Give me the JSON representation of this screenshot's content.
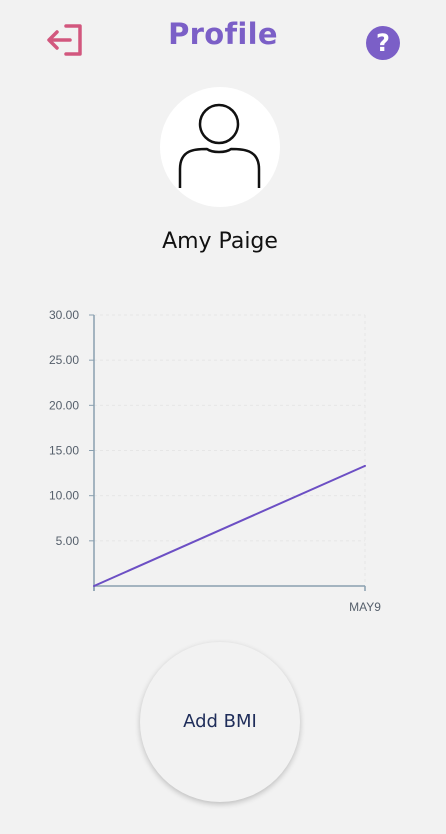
{
  "header": {
    "title": "Profile",
    "help_label": "?",
    "logout_icon": "logout-icon",
    "help_icon": "help-icon"
  },
  "profile": {
    "name": "Amy Paige",
    "avatar_icon": "user-avatar-icon"
  },
  "chart_data": {
    "type": "line",
    "categories": [
      "",
      "MAY9"
    ],
    "series": [
      {
        "values": [
          0,
          13.3
        ]
      }
    ],
    "yticks": [
      "5.00",
      "10.00",
      "15.00",
      "20.00",
      "25.00",
      "30.00"
    ],
    "ylim": [
      0,
      30
    ],
    "grid": true,
    "line_color": "#6c4fc4",
    "axis_color": "#8aa0b0"
  },
  "actions": {
    "add_bmi_label": "Add BMI"
  },
  "colors": {
    "accent": "#7b5fc7",
    "logout": "#d2577e",
    "background": "#f2f2f2",
    "button_text": "#1f2d5a"
  }
}
